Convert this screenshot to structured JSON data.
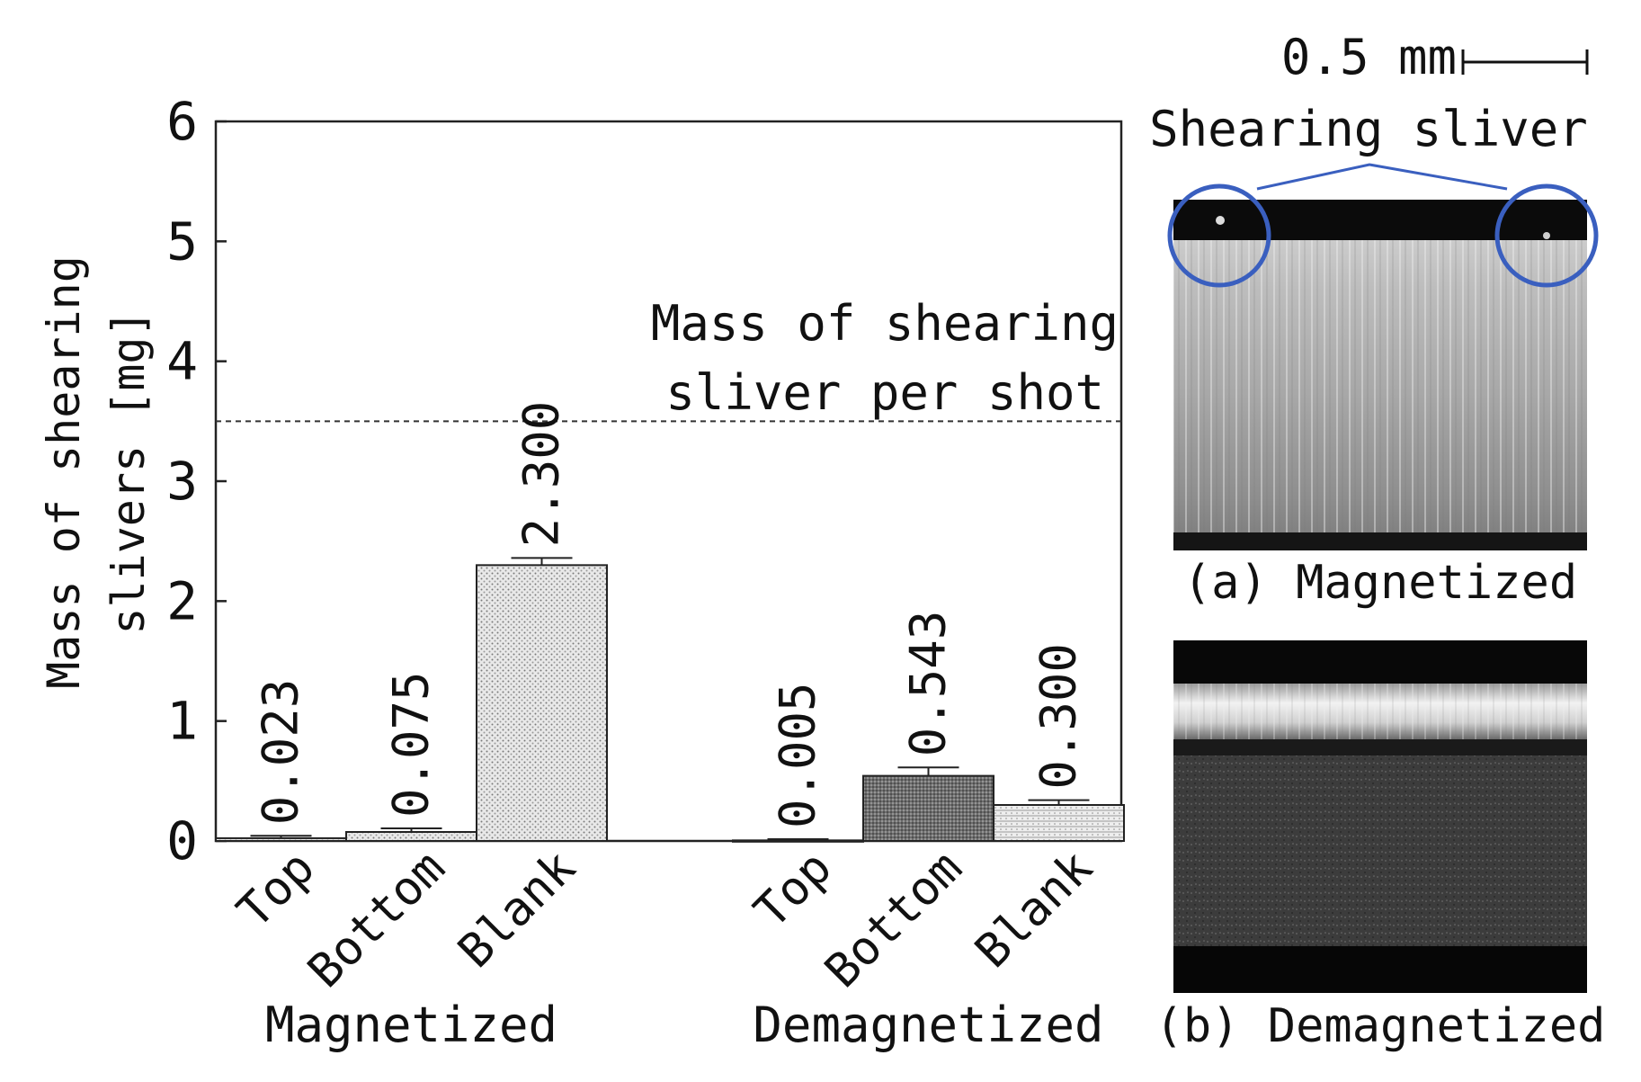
{
  "chart_data": {
    "type": "bar",
    "ylabel_lines": [
      "Mass of shearing",
      "slivers [mg]"
    ],
    "ylim": [
      0,
      6
    ],
    "yticks": [
      "0",
      "1",
      "2",
      "3",
      "4",
      "5",
      "6"
    ],
    "grid": false,
    "groups": [
      {
        "name": "Magnetized",
        "categories": [
          "Top",
          "Bottom",
          "Blank"
        ],
        "values": [
          0.023,
          0.075,
          2.3
        ],
        "labels": [
          "0.023",
          "0.075",
          "2.300"
        ],
        "errors": [
          0.02,
          0.03,
          0.06
        ],
        "fills": [
          "pat-dots",
          "pat-dots",
          "pat-dots"
        ]
      },
      {
        "name": "Demagnetized",
        "categories": [
          "Top",
          "Bottom",
          "Blank"
        ],
        "values": [
          0.005,
          0.543,
          0.3
        ],
        "labels": [
          "0.005",
          "0.543",
          "0.300"
        ],
        "errors": [
          0.01,
          0.07,
          0.04
        ],
        "fills": [
          "pat-dots",
          "pat-dense",
          "pat-lines"
        ]
      }
    ],
    "reference_line": {
      "value": 3.5,
      "label_lines": [
        "Mass of shearing",
        "sliver per shot"
      ]
    }
  },
  "images": {
    "scale_bar_label": "0.5 mm",
    "callout_label": "Shearing sliver",
    "panel_a_caption": "(a) Magnetized",
    "panel_b_caption": "(b) Demagnetized",
    "circle_color": "#3a5fbf"
  }
}
